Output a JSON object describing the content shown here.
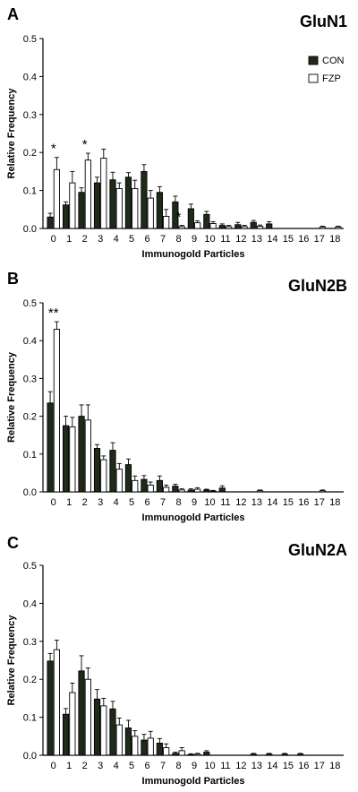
{
  "colors": {
    "con": "#1f2a1a",
    "fzp": "#ffffff",
    "axis": "#000000"
  },
  "chart_data": [
    {
      "type": "bar",
      "panel_letter": "A",
      "title": "GluN1",
      "xlabel": "Immunogold Particles",
      "ylabel": "Relative Frequency",
      "ylim": [
        0,
        0.5
      ],
      "yticks": [
        "0.0",
        "0.1",
        "0.2",
        "0.3",
        "0.4",
        "0.5"
      ],
      "categories": [
        "0",
        "1",
        "2",
        "3",
        "4",
        "5",
        "6",
        "7",
        "8",
        "9",
        "10",
        "11",
        "12",
        "13",
        "14",
        "15",
        "16",
        "17",
        "18"
      ],
      "legend": {
        "placement": "top-right",
        "entries": [
          "CON",
          "FZP"
        ]
      },
      "series": [
        {
          "name": "CON",
          "values": [
            0.03,
            0.062,
            0.095,
            0.12,
            0.128,
            0.135,
            0.15,
            0.095,
            0.07,
            0.052,
            0.037,
            0.008,
            0.01,
            0.016,
            0.012,
            0,
            0,
            0,
            0
          ],
          "errors": [
            0.01,
            0.008,
            0.012,
            0.015,
            0.02,
            0.012,
            0.018,
            0.015,
            0.015,
            0.012,
            0.008,
            0.004,
            0.006,
            0.005,
            0.006,
            0,
            0,
            0,
            0
          ]
        },
        {
          "name": "FZP",
          "values": [
            0.155,
            0.12,
            0.18,
            0.185,
            0.105,
            0.105,
            0.08,
            0.032,
            0.005,
            0.015,
            0.013,
            0.005,
            0.005,
            0.006,
            0,
            0,
            0,
            0.004,
            0.004
          ],
          "errors": [
            0.032,
            0.03,
            0.018,
            0.024,
            0.015,
            0.022,
            0.02,
            0.018,
            0.003,
            0.005,
            0.005,
            0.003,
            0.003,
            0.003,
            0,
            0,
            0,
            0.002,
            0.002
          ]
        }
      ],
      "significance": [
        {
          "category": "0",
          "label": "*"
        },
        {
          "category": "2",
          "label": "*"
        },
        {
          "category": "8",
          "label": "*"
        }
      ]
    },
    {
      "type": "bar",
      "panel_letter": "B",
      "title": "GluN2B",
      "xlabel": "Immunogold Particles",
      "ylabel": "Relative Frequency",
      "ylim": [
        0,
        0.5
      ],
      "yticks": [
        "0.0",
        "0.1",
        "0.2",
        "0.3",
        "0.4",
        "0.5"
      ],
      "categories": [
        "0",
        "1",
        "2",
        "3",
        "4",
        "5",
        "6",
        "7",
        "8",
        "9",
        "10",
        "11",
        "12",
        "13",
        "14",
        "15",
        "16",
        "17",
        "18"
      ],
      "series": [
        {
          "name": "CON",
          "values": [
            0.235,
            0.175,
            0.2,
            0.115,
            0.11,
            0.072,
            0.033,
            0.03,
            0.015,
            0.005,
            0.005,
            0.01,
            0,
            0,
            0,
            0,
            0,
            0,
            0
          ],
          "errors": [
            0.03,
            0.025,
            0.03,
            0.01,
            0.02,
            0.015,
            0.01,
            0.012,
            0.005,
            0.003,
            0.002,
            0.006,
            0,
            0,
            0,
            0,
            0,
            0,
            0
          ]
        },
        {
          "name": "FZP",
          "values": [
            0.43,
            0.172,
            0.19,
            0.085,
            0.06,
            0.03,
            0.018,
            0.012,
            0.005,
            0.007,
            0.002,
            0,
            0,
            0.003,
            0,
            0,
            0,
            0.003,
            0
          ],
          "errors": [
            0.02,
            0.025,
            0.04,
            0.01,
            0.015,
            0.012,
            0.008,
            0.006,
            0.003,
            0.004,
            0.002,
            0,
            0,
            0.002,
            0,
            0,
            0,
            0.002,
            0
          ]
        }
      ],
      "significance": [
        {
          "category": "0",
          "label": "**"
        }
      ]
    },
    {
      "type": "bar",
      "panel_letter": "C",
      "title": "GluN2A",
      "xlabel": "Immunogold Particles",
      "ylabel": "Relative Frequency",
      "ylim": [
        0,
        0.5
      ],
      "yticks": [
        "0.0",
        "0.1",
        "0.2",
        "0.3",
        "0.4",
        "0.5"
      ],
      "categories": [
        "0",
        "1",
        "2",
        "3",
        "4",
        "5",
        "6",
        "7",
        "8",
        "9",
        "10",
        "11",
        "12",
        "13",
        "14",
        "15",
        "16",
        "17",
        "18"
      ],
      "series": [
        {
          "name": "CON",
          "values": [
            0.248,
            0.108,
            0.222,
            0.148,
            0.122,
            0.072,
            0.04,
            0.032,
            0.005,
            0.002,
            0.008,
            0,
            0,
            0.003,
            0.003,
            0.003,
            0.003,
            0,
            0
          ],
          "errors": [
            0.02,
            0.015,
            0.04,
            0.025,
            0.02,
            0.02,
            0.015,
            0.012,
            0.003,
            0.002,
            0.004,
            0,
            0,
            0.002,
            0.002,
            0.002,
            0.002,
            0,
            0
          ]
        },
        {
          "name": "FZP",
          "values": [
            0.278,
            0.165,
            0.2,
            0.13,
            0.08,
            0.05,
            0.045,
            0.02,
            0.012,
            0.003,
            0,
            0,
            0,
            0,
            0,
            0,
            0,
            0,
            0
          ],
          "errors": [
            0.025,
            0.025,
            0.03,
            0.02,
            0.018,
            0.015,
            0.018,
            0.01,
            0.008,
            0.002,
            0,
            0,
            0,
            0,
            0,
            0,
            0,
            0,
            0
          ]
        }
      ],
      "significance": []
    }
  ]
}
